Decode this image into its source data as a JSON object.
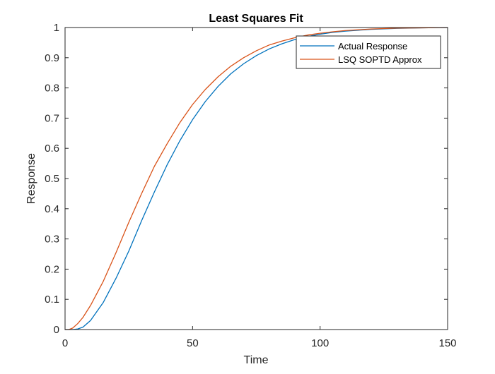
{
  "chart_data": {
    "type": "line",
    "title": "Least Squares Fit",
    "xlabel": "Time",
    "ylabel": "Response",
    "xlim": [
      0,
      150
    ],
    "ylim": [
      0,
      1
    ],
    "xticks": [
      0,
      50,
      100,
      150
    ],
    "yticks": [
      0,
      0.1,
      0.2,
      0.3,
      0.4,
      0.5,
      0.6,
      0.7,
      0.8,
      0.9,
      1
    ],
    "xtick_labels": [
      "0",
      "50",
      "100",
      "150"
    ],
    "ytick_labels": [
      "0",
      "0.1",
      "0.2",
      "0.3",
      "0.4",
      "0.5",
      "0.6",
      "0.7",
      "0.8",
      "0.9",
      "1"
    ],
    "grid": false,
    "box": true,
    "legend_position": "top-right",
    "series": [
      {
        "name": "Actual Response",
        "color": "#0072BD",
        "x": [
          0,
          3,
          5,
          7,
          10,
          15,
          20,
          25,
          30,
          35,
          40,
          45,
          50,
          55,
          60,
          65,
          70,
          75,
          80,
          85,
          90,
          95,
          100,
          105,
          110,
          120,
          130,
          140,
          150
        ],
        "y": [
          0,
          0,
          0.002,
          0.008,
          0.03,
          0.09,
          0.17,
          0.26,
          0.36,
          0.455,
          0.545,
          0.625,
          0.695,
          0.755,
          0.805,
          0.847,
          0.88,
          0.907,
          0.929,
          0.946,
          0.96,
          0.97,
          0.978,
          0.984,
          0.988,
          0.994,
          0.997,
          0.999,
          1.0
        ]
      },
      {
        "name": "LSQ SOPTD Approx",
        "color": "#D95319",
        "x": [
          0,
          1.5,
          3,
          5,
          7,
          10,
          15,
          20,
          25,
          30,
          35,
          40,
          45,
          50,
          55,
          60,
          65,
          70,
          75,
          80,
          85,
          90,
          95,
          100,
          105,
          110,
          120,
          130,
          140,
          150
        ],
        "y": [
          0,
          0,
          0.005,
          0.02,
          0.04,
          0.08,
          0.16,
          0.255,
          0.355,
          0.45,
          0.54,
          0.615,
          0.685,
          0.745,
          0.795,
          0.837,
          0.872,
          0.9,
          0.923,
          0.942,
          0.955,
          0.966,
          0.975,
          0.981,
          0.986,
          0.99,
          0.995,
          0.998,
          0.999,
          1.0
        ]
      }
    ]
  }
}
